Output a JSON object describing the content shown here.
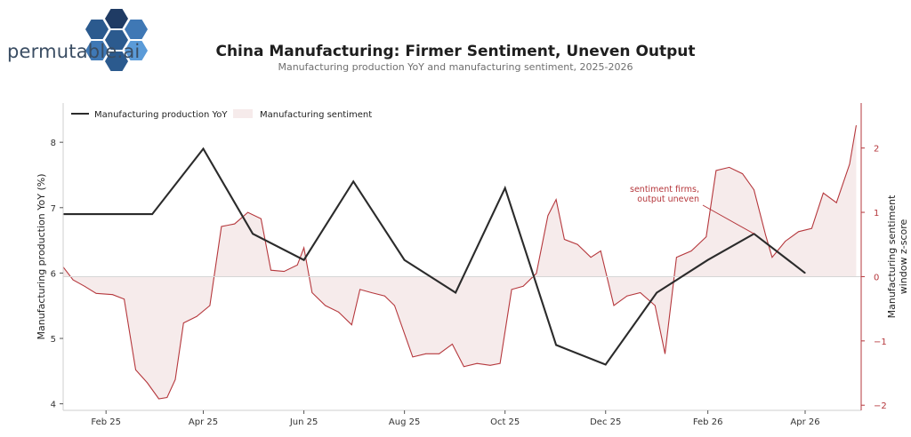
{
  "brand": {
    "logo_text": "permutable.ai",
    "colors": [
      "#1f3b64",
      "#2b5a8e",
      "#3f78b5",
      "#5b9bd8"
    ]
  },
  "chart_data": {
    "type": "line",
    "title": "China Manufacturing: Firmer Sentiment, Uneven Output",
    "subtitle": "Manufacturing production YoY and manufacturing sentiment, 2025-2026",
    "ylabel": "Manufacturing production YoY (%)",
    "y2label": "Manufacturing sentiment window z-score",
    "ylim": [
      3.9,
      8.6
    ],
    "y2lim": [
      -2.08,
      2.7
    ],
    "xlim": [
      "2025-01-06",
      "2026-05-05"
    ],
    "x_ticks": [
      {
        "date": "2025-02-01",
        "label": "Feb 25"
      },
      {
        "date": "2025-04-01",
        "label": "Apr 25"
      },
      {
        "date": "2025-06-01",
        "label": "Jun 25"
      },
      {
        "date": "2025-08-01",
        "label": "Aug 25"
      },
      {
        "date": "2025-10-01",
        "label": "Oct 25"
      },
      {
        "date": "2025-12-01",
        "label": "Dec 25"
      },
      {
        "date": "2026-02-01",
        "label": "Feb 26"
      },
      {
        "date": "2026-04-01",
        "label": "Apr 26"
      }
    ],
    "y_ticks": [
      4,
      5,
      6,
      7,
      8
    ],
    "y2_ticks": [
      -2,
      -1,
      0,
      1,
      2
    ],
    "y2_tick_labels": [
      "−2",
      "−1",
      "0",
      "1",
      "2"
    ],
    "legend": {
      "placement": "top-left",
      "entries": [
        "Manufacturing production YoY",
        "Manufacturing sentiment"
      ]
    },
    "grid": false,
    "colors": {
      "production": "#2b2b2b",
      "sentiment_line": "#b5373c",
      "sentiment_fill": "#f6ebeb",
      "right_axis": "#b5373c",
      "annotation": "#b5373c"
    },
    "series": [
      {
        "name": "Manufacturing production YoY",
        "axis": "left",
        "points": [
          {
            "date": "2025-01-06",
            "value": 6.9
          },
          {
            "date": "2025-03-01",
            "value": 6.9
          },
          {
            "date": "2025-04-01",
            "value": 7.9
          },
          {
            "date": "2025-05-01",
            "value": 6.6
          },
          {
            "date": "2025-06-01",
            "value": 6.2
          },
          {
            "date": "2025-07-01",
            "value": 7.4
          },
          {
            "date": "2025-08-01",
            "value": 6.2
          },
          {
            "date": "2025-09-01",
            "value": 5.7
          },
          {
            "date": "2025-10-01",
            "value": 7.3
          },
          {
            "date": "2025-11-01",
            "value": 4.9
          },
          {
            "date": "2025-12-01",
            "value": 4.6
          },
          {
            "date": "2026-01-01",
            "value": 5.7
          },
          {
            "date": "2026-02-01",
            "value": 6.2
          },
          {
            "date": "2026-03-01",
            "value": 6.6
          },
          {
            "date": "2026-04-01",
            "value": 6.0
          }
        ]
      },
      {
        "name": "Manufacturing sentiment",
        "axis": "right",
        "points": [
          {
            "date": "2025-01-06",
            "value": 0.15
          },
          {
            "date": "2025-01-12",
            "value": -0.05
          },
          {
            "date": "2025-01-19",
            "value": -0.15
          },
          {
            "date": "2025-01-26",
            "value": -0.26
          },
          {
            "date": "2025-02-05",
            "value": -0.28
          },
          {
            "date": "2025-02-12",
            "value": -0.35
          },
          {
            "date": "2025-02-19",
            "value": -1.45
          },
          {
            "date": "2025-02-26",
            "value": -1.65
          },
          {
            "date": "2025-03-05",
            "value": -1.9
          },
          {
            "date": "2025-03-10",
            "value": -1.88
          },
          {
            "date": "2025-03-15",
            "value": -1.6
          },
          {
            "date": "2025-03-20",
            "value": -0.72
          },
          {
            "date": "2025-03-28",
            "value": -0.62
          },
          {
            "date": "2025-04-05",
            "value": -0.45
          },
          {
            "date": "2025-04-12",
            "value": 0.78
          },
          {
            "date": "2025-04-20",
            "value": 0.82
          },
          {
            "date": "2025-04-28",
            "value": 1.0
          },
          {
            "date": "2025-05-06",
            "value": 0.9
          },
          {
            "date": "2025-05-12",
            "value": 0.1
          },
          {
            "date": "2025-05-20",
            "value": 0.08
          },
          {
            "date": "2025-05-28",
            "value": 0.18
          },
          {
            "date": "2025-06-01",
            "value": 0.45
          },
          {
            "date": "2025-06-06",
            "value": -0.25
          },
          {
            "date": "2025-06-14",
            "value": -0.45
          },
          {
            "date": "2025-06-22",
            "value": -0.55
          },
          {
            "date": "2025-06-30",
            "value": -0.75
          },
          {
            "date": "2025-07-05",
            "value": -0.2
          },
          {
            "date": "2025-07-12",
            "value": -0.25
          },
          {
            "date": "2025-07-20",
            "value": -0.3
          },
          {
            "date": "2025-07-26",
            "value": -0.45
          },
          {
            "date": "2025-08-06",
            "value": -1.25
          },
          {
            "date": "2025-08-14",
            "value": -1.2
          },
          {
            "date": "2025-08-22",
            "value": -1.2
          },
          {
            "date": "2025-08-30",
            "value": -1.05
          },
          {
            "date": "2025-09-06",
            "value": -1.4
          },
          {
            "date": "2025-09-14",
            "value": -1.35
          },
          {
            "date": "2025-09-22",
            "value": -1.38
          },
          {
            "date": "2025-09-28",
            "value": -1.35
          },
          {
            "date": "2025-10-05",
            "value": -0.2
          },
          {
            "date": "2025-10-12",
            "value": -0.15
          },
          {
            "date": "2025-10-20",
            "value": 0.05
          },
          {
            "date": "2025-10-27",
            "value": 0.95
          },
          {
            "date": "2025-11-01",
            "value": 1.2
          },
          {
            "date": "2025-11-06",
            "value": 0.58
          },
          {
            "date": "2025-11-14",
            "value": 0.5
          },
          {
            "date": "2025-11-22",
            "value": 0.3
          },
          {
            "date": "2025-11-28",
            "value": 0.4
          },
          {
            "date": "2025-12-06",
            "value": -0.45
          },
          {
            "date": "2025-12-14",
            "value": -0.3
          },
          {
            "date": "2025-12-22",
            "value": -0.25
          },
          {
            "date": "2025-12-31",
            "value": -0.45
          },
          {
            "date": "2026-01-06",
            "value": -1.2
          },
          {
            "date": "2026-01-13",
            "value": 0.3
          },
          {
            "date": "2026-01-22",
            "value": 0.4
          },
          {
            "date": "2026-01-31",
            "value": 0.62
          },
          {
            "date": "2026-02-06",
            "value": 1.65
          },
          {
            "date": "2026-02-14",
            "value": 1.7
          },
          {
            "date": "2026-02-22",
            "value": 1.6
          },
          {
            "date": "2026-03-01",
            "value": 1.35
          },
          {
            "date": "2026-03-08",
            "value": 0.65
          },
          {
            "date": "2026-03-12",
            "value": 0.3
          },
          {
            "date": "2026-03-20",
            "value": 0.55
          },
          {
            "date": "2026-03-28",
            "value": 0.7
          },
          {
            "date": "2026-04-05",
            "value": 0.75
          },
          {
            "date": "2026-04-12",
            "value": 1.3
          },
          {
            "date": "2026-04-20",
            "value": 1.15
          },
          {
            "date": "2026-04-28",
            "value": 1.75
          },
          {
            "date": "2026-05-02",
            "value": 2.35
          }
        ]
      }
    ],
    "annotation": {
      "text_lines": [
        "sentiment firms,",
        "output uneven"
      ],
      "target": {
        "date": "2026-03-01",
        "value": 6.6
      }
    }
  }
}
